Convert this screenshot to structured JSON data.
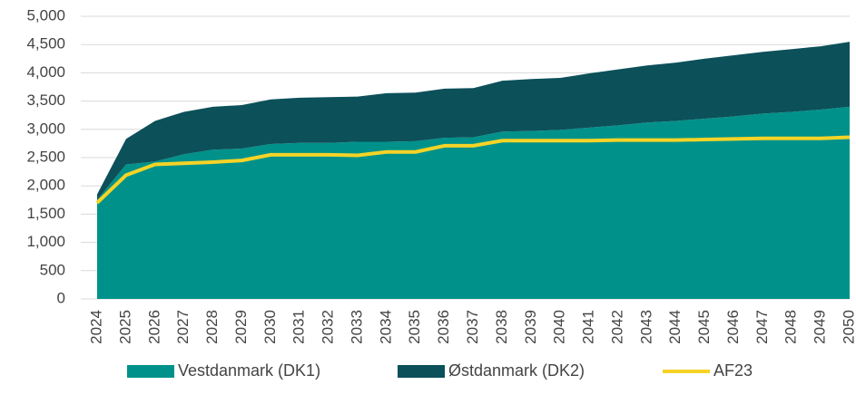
{
  "chart_data": {
    "type": "area",
    "stacked": true,
    "grid": true,
    "legend": "bottom",
    "categories": [
      "2024",
      "2025",
      "2026",
      "2027",
      "2028",
      "2029",
      "2030",
      "2031",
      "2032",
      "2033",
      "2034",
      "2035",
      "2036",
      "2037",
      "2038",
      "2039",
      "2040",
      "2041",
      "2042",
      "2043",
      "2044",
      "2045",
      "2046",
      "2047",
      "2048",
      "2049",
      "2050"
    ],
    "series": [
      {
        "name": "Vestdanmark (DK1)",
        "type": "area",
        "color": "#00928a",
        "values": [
          1750,
          2380,
          2430,
          2560,
          2640,
          2660,
          2740,
          2760,
          2760,
          2780,
          2780,
          2790,
          2850,
          2860,
          2960,
          2970,
          2990,
          3030,
          3070,
          3120,
          3150,
          3190,
          3230,
          3280,
          3310,
          3350,
          3400
        ]
      },
      {
        "name": "Østdanmark (DK2)",
        "type": "area",
        "color": "#0c505a",
        "values": [
          100,
          450,
          720,
          750,
          760,
          770,
          790,
          800,
          810,
          800,
          860,
          860,
          870,
          870,
          900,
          920,
          920,
          960,
          990,
          1010,
          1030,
          1060,
          1080,
          1090,
          1110,
          1120,
          1150
        ]
      },
      {
        "name": "AF23",
        "type": "line",
        "color": "#f5d327",
        "values": [
          1700,
          2190,
          2380,
          2400,
          2420,
          2450,
          2550,
          2550,
          2550,
          2540,
          2600,
          2600,
          2710,
          2710,
          2800,
          2800,
          2800,
          2800,
          2810,
          2810,
          2810,
          2820,
          2830,
          2840,
          2840,
          2840,
          2860
        ]
      }
    ],
    "ylim": [
      0,
      5000
    ],
    "yticks": [
      0,
      500,
      {
        "value": 1000,
        "label": "1,000"
      },
      {
        "value": 1500,
        "label": "1,500"
      },
      {
        "value": 2000,
        "label": "2,000"
      },
      {
        "value": 2500,
        "label": "2,500"
      },
      {
        "value": 3000,
        "label": "3,000"
      },
      {
        "value": 3500,
        "label": "3,500"
      },
      {
        "value": 4000,
        "label": "4,000"
      },
      {
        "value": 4500,
        "label": "4,500"
      },
      {
        "value": 5000,
        "label": "5,000"
      }
    ]
  }
}
